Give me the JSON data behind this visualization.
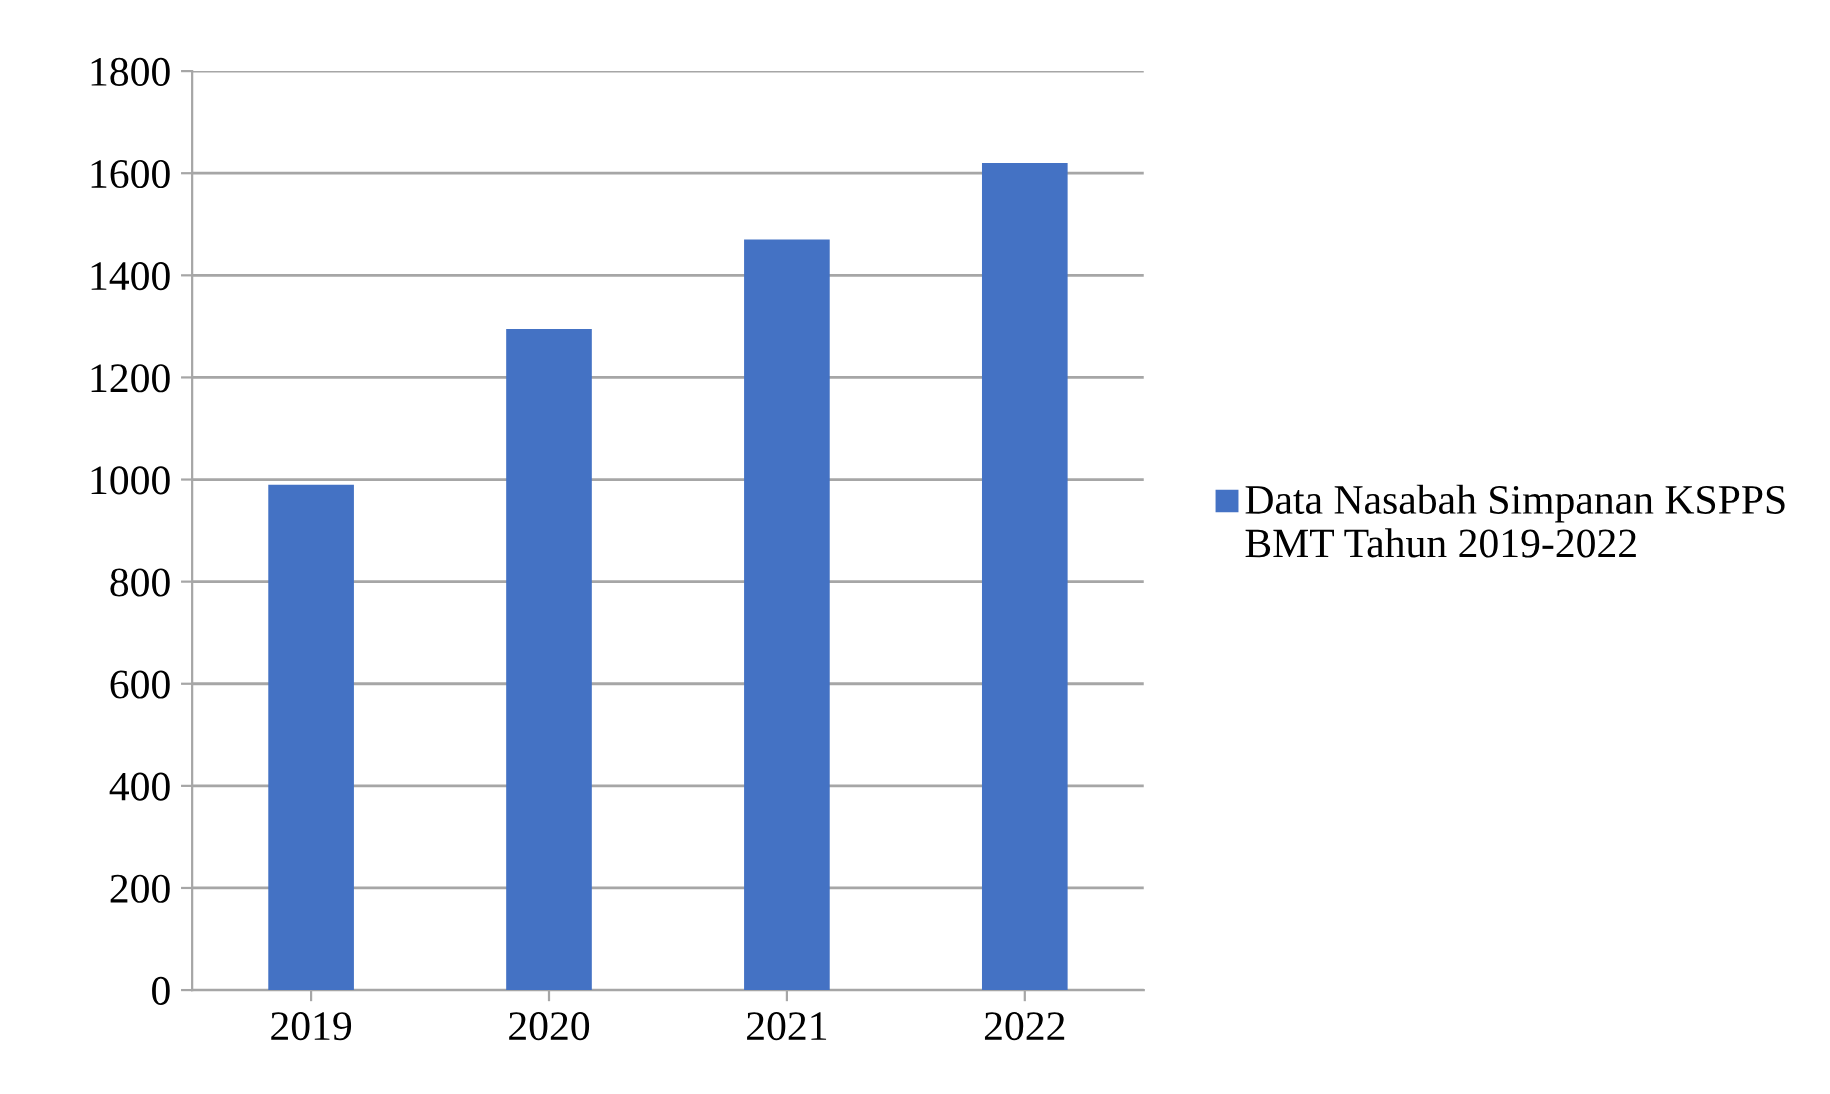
{
  "chart_data": {
    "type": "bar",
    "categories": [
      "2019",
      "2020",
      "2021",
      "2022"
    ],
    "series": [
      {
        "name": "Data Nasabah Simpanan KSPPS BMT Tahun 2019-2022",
        "color": "#4472c4",
        "values": [
          990,
          1295,
          1470,
          1620
        ]
      }
    ],
    "ylim": [
      0,
      1800
    ],
    "yticks": [
      0,
      200,
      400,
      600,
      800,
      1000,
      1200,
      1400,
      1600,
      1800
    ],
    "grid": "y",
    "legend": "right"
  }
}
